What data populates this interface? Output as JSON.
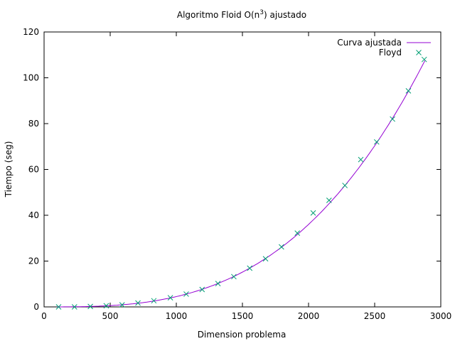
{
  "chart_data": {
    "type": "scatter",
    "title": {
      "main": "Algoritmo Floid O(n",
      "sup": "3",
      "tail": ") ajustado"
    },
    "xlabel": "Dimension problema",
    "ylabel": "Tiempo (seg)",
    "xlim": [
      0,
      3000
    ],
    "ylim": [
      0,
      120
    ],
    "xticks": [
      0,
      500,
      1000,
      1500,
      2000,
      2500,
      3000
    ],
    "yticks": [
      0,
      20,
      40,
      60,
      80,
      100,
      120
    ],
    "grid": false,
    "legend_position": "top-right",
    "series": [
      {
        "name": "Curva ajustada",
        "kind": "line",
        "color": "#9400d3",
        "model": "cubic",
        "coefficients": {
          "a": 4.5e-09,
          "b": 0,
          "c": 0,
          "d": 0
        },
        "x_range": [
          100,
          2880
        ]
      },
      {
        "name": "Floyd",
        "kind": "points",
        "marker": "x",
        "color": "#009e73",
        "x": [
          110,
          230,
          350,
          470,
          590,
          710,
          830,
          955,
          1075,
          1195,
          1315,
          1435,
          1555,
          1675,
          1795,
          1915,
          2035,
          2155,
          2275,
          2395,
          2515,
          2635,
          2755,
          2875
        ],
        "y": [
          0,
          0,
          0.2,
          0.5,
          0.9,
          1.7,
          2.7,
          4.0,
          5.6,
          7.6,
          10.2,
          13.2,
          16.9,
          21.0,
          26.2,
          32.2,
          41.0,
          46.5,
          53.0,
          64.3,
          72.0,
          82.0,
          94.3,
          108.0
        ]
      }
    ]
  }
}
